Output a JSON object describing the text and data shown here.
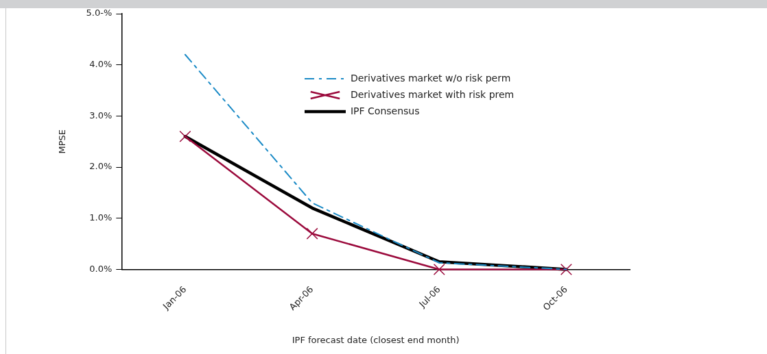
{
  "chart_data": {
    "type": "line",
    "xlabel": "IPF forecast date (closest end month)",
    "ylabel": "MPSE",
    "categories": [
      "Jan-06",
      "Apr-06",
      "Jul-06",
      "Oct-06"
    ],
    "series": [
      {
        "name": "Derivatives market w/o risk perm",
        "color": "#1a8ac6",
        "values": [
          4.2,
          1.3,
          0.13,
          0.0
        ],
        "line_style": "dashed",
        "marker": "none"
      },
      {
        "name": "Derivatives market with risk prem",
        "color": "#9b0a3c",
        "values": [
          2.6,
          0.7,
          0.0,
          0.0
        ],
        "line_style": "solid",
        "marker": "cross"
      },
      {
        "name": "IPF Consensus",
        "color": "#000000",
        "values": [
          2.6,
          1.2,
          0.15,
          0.0
        ],
        "line_style": "solid",
        "marker": "none"
      }
    ],
    "ylim": [
      0,
      5
    ],
    "yticks": [
      {
        "value": 0,
        "label": "0.0%"
      },
      {
        "value": 1,
        "label": "1.0%"
      },
      {
        "value": 2,
        "label": "2.0%"
      },
      {
        "value": 3,
        "label": "3.0%"
      },
      {
        "value": 4,
        "label": "4.0%"
      },
      {
        "value": 5,
        "label": "5.0-%"
      }
    ],
    "grid": false,
    "legend": "top right"
  }
}
